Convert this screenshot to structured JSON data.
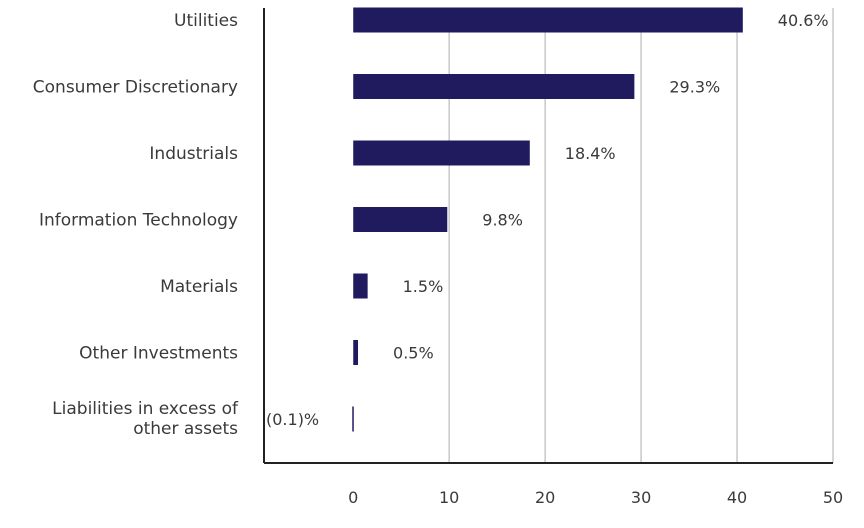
{
  "chart_data": {
    "type": "bar",
    "orientation": "horizontal",
    "categories": [
      "Utilities",
      "Consumer Discretionary",
      "Industrials",
      "Information Technology",
      "Materials",
      "Other Investments",
      "Liabilities in excess of other assets"
    ],
    "values": [
      40.6,
      29.3,
      18.4,
      9.8,
      1.5,
      0.5,
      -0.1
    ],
    "value_labels": [
      "40.6%",
      "29.3%",
      "18.4%",
      "9.8%",
      "1.5%",
      "0.5%",
      "(0.1)%"
    ],
    "x_ticks": [
      "0",
      "10",
      "20",
      "30",
      "40",
      "50"
    ],
    "xlim": [
      -9.3,
      50
    ],
    "grid": "vertical",
    "legend": "none",
    "bar_color": "#201a5f",
    "grid_color": "#c8c8c8",
    "axis_color": "#222222"
  }
}
